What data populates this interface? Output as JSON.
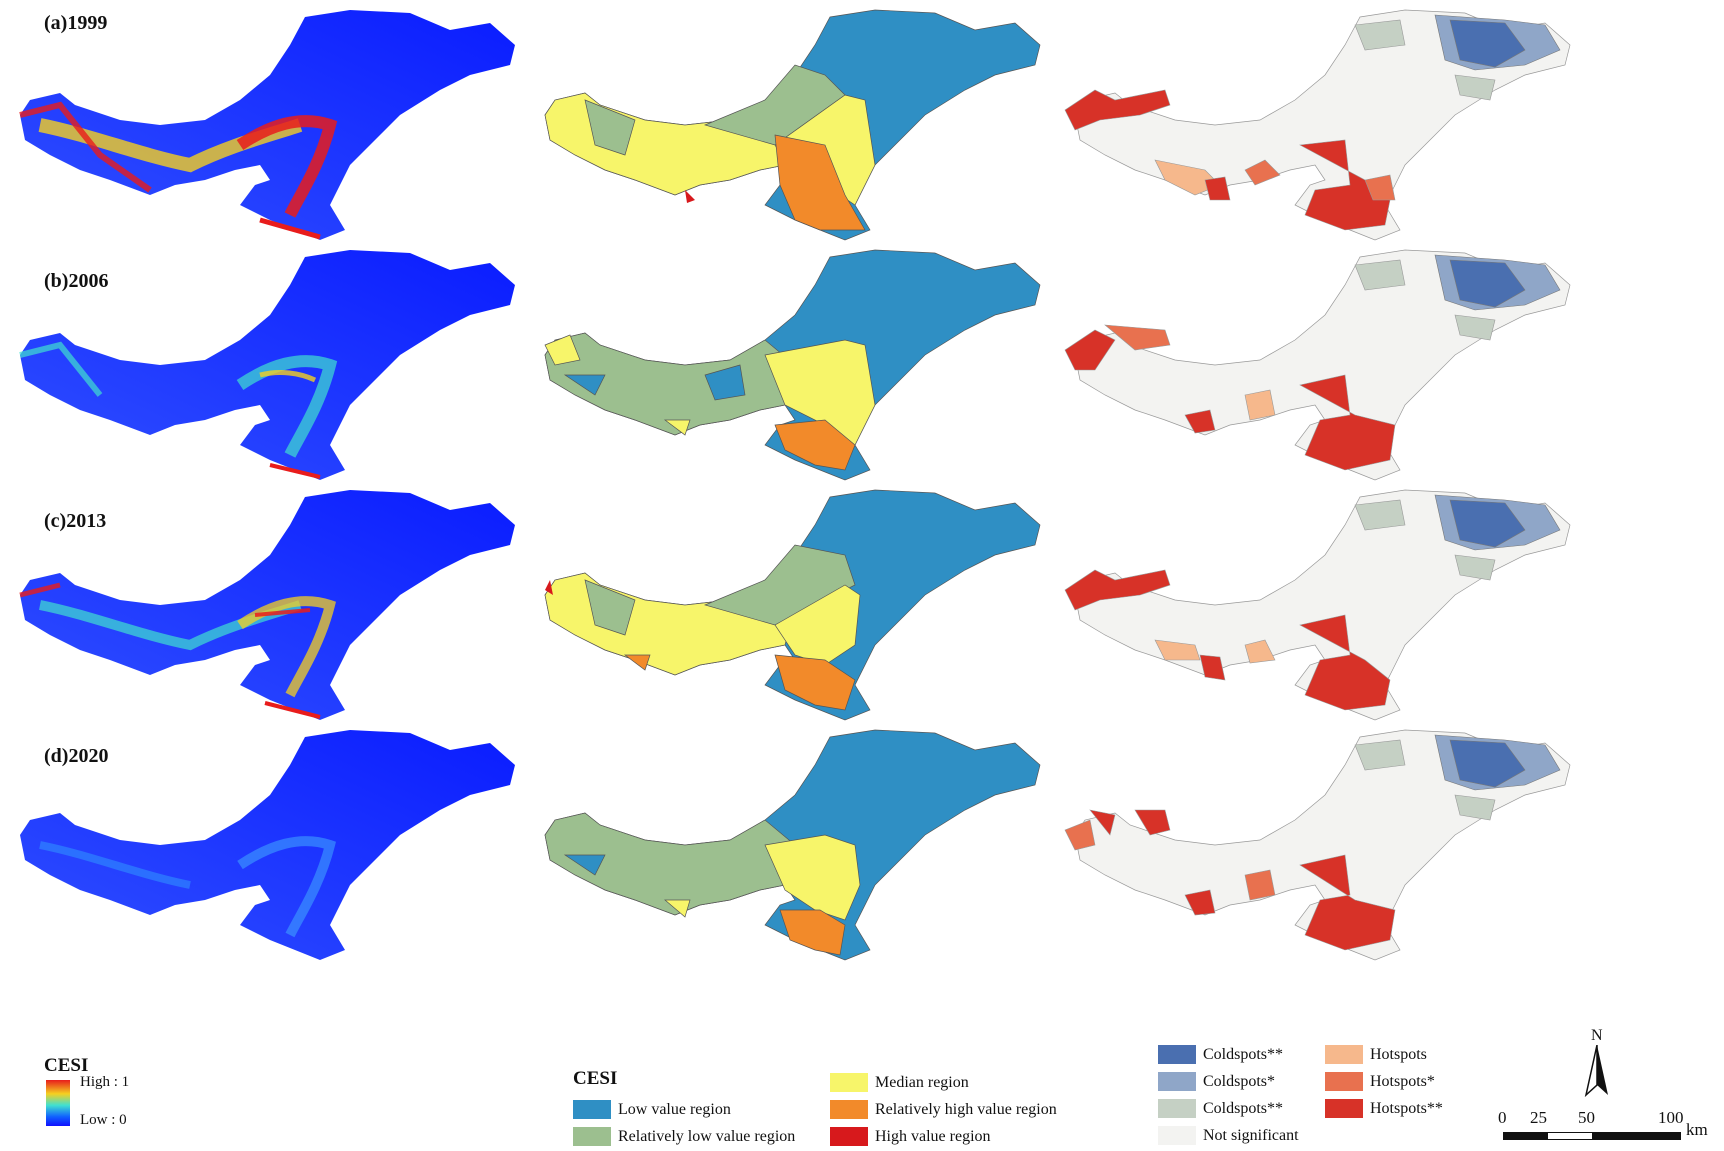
{
  "panels": [
    {
      "label": "(a)1999"
    },
    {
      "label": "(b)2006"
    },
    {
      "label": "(c)2013"
    },
    {
      "label": "(d)2020"
    }
  ],
  "legend_raster": {
    "title": "CESI",
    "high": "High : 1",
    "low": "Low : 0",
    "colors": [
      "#e81c1c",
      "#f5d020",
      "#40e0d0",
      "#1060ff",
      "#1010ff"
    ]
  },
  "legend_class": {
    "title": "CESI",
    "items": [
      {
        "label": "Low value region",
        "color": "#2f8fc4"
      },
      {
        "label": "Relatively low value region",
        "color": "#9cbf8f"
      },
      {
        "label": "Median region",
        "color": "#f7f56a"
      },
      {
        "label": "Relatively high value region",
        "color": "#f28a2a"
      },
      {
        "label": "High value region",
        "color": "#d7191c"
      }
    ]
  },
  "legend_hotspot": {
    "items": [
      {
        "label": "Coldspots**",
        "color": "#4a6fb0"
      },
      {
        "label": "Coldspots*",
        "color": "#8fa6c8"
      },
      {
        "label": "Coldspots**",
        "color": "#c5d0c4"
      },
      {
        "label": "Not significant",
        "color": "#f3f3f1"
      },
      {
        "label": "Hotspots",
        "color": "#f6b88c"
      },
      {
        "label": "Hotspots*",
        "color": "#e8714f"
      },
      {
        "label": "Hotspots**",
        "color": "#d73228"
      }
    ]
  },
  "north_arrow": {
    "label": "N"
  },
  "scale_bar": {
    "ticks": [
      "0",
      "25",
      "50",
      "100"
    ],
    "unit": "km"
  }
}
